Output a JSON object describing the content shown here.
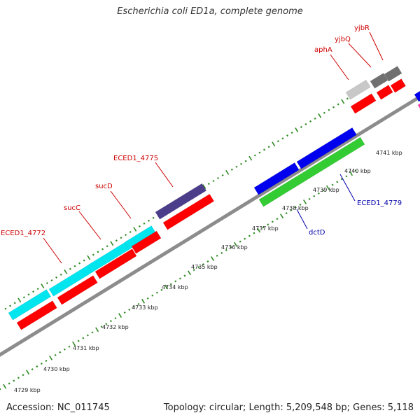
{
  "title": "Escherichia coli ED1a, complete genome",
  "footer": {
    "accession": "Accession: NC_011745",
    "summary": "Topology: circular; Length: 5,209,548 bp; Genes: 5,118"
  },
  "colors": {
    "backbone": "#8c8c8c",
    "tick": "#2e8b22",
    "cds": "#ff0000",
    "label_forward": "#cc0000",
    "label_reverse": "#0000aa"
  },
  "scale": {
    "unit": "kbp",
    "tick_labels": [
      "4729 kbp",
      "4730 kbp",
      "4731 kbp",
      "4732 kbp",
      "4733 kbp",
      "4734 kbp",
      "4735 kbp",
      "4736 kbp",
      "4737 kbp",
      "4738 kbp",
      "4739 kbp",
      "4740 kbp",
      "4741 kbp"
    ]
  },
  "genes": [
    {
      "label": "ECED1_4772",
      "color": "#00e5ee"
    },
    {
      "label": "sucC",
      "color": "#00e5ee"
    },
    {
      "label": "sucD",
      "color": "#00e5ee"
    },
    {
      "label": "ECED1_4775",
      "color": "#4b3d8a"
    },
    {
      "label": "aphA",
      "color": "#c8c8c8"
    },
    {
      "label": "yjbQ",
      "color": "#707070"
    },
    {
      "label": "yjbR",
      "color": "#707070"
    },
    {
      "label": "ECED1_4779",
      "color": "#0000ee"
    },
    {
      "label": "dctD",
      "color": "#33cc33"
    }
  ]
}
